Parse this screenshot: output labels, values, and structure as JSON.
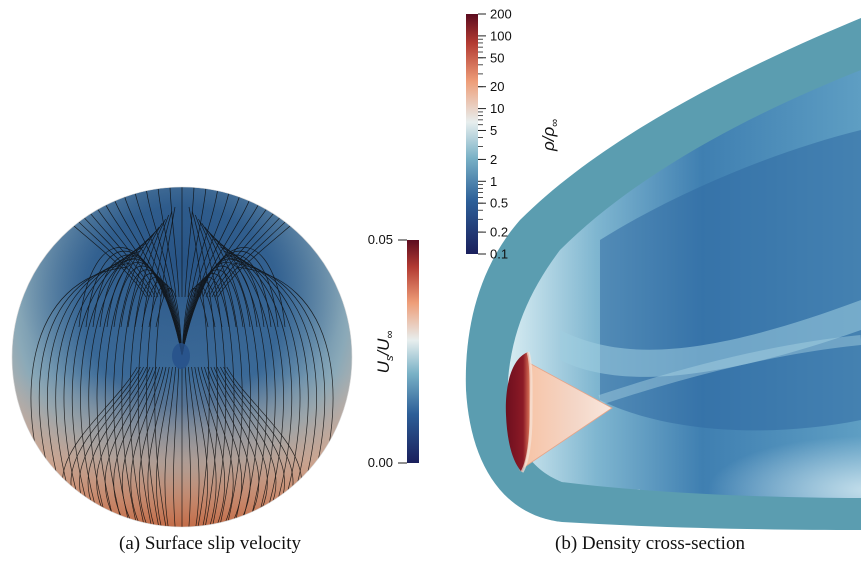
{
  "figure": {
    "panel_a": {
      "caption": "(a) Surface slip velocity",
      "colorbar": {
        "title_main": "U",
        "title_sub": "s",
        "title_sep": "/",
        "title_main2": "U",
        "title_sub2": "∞",
        "ticks": [
          "0.05",
          "0.00"
        ],
        "colors": [
          "#1a1f5c",
          "#3a6fa0",
          "#d9ecef",
          "#f2a27a",
          "#6b0f1f"
        ]
      }
    },
    "panel_b": {
      "caption": "(b) Density cross-section",
      "colorbar": {
        "title_main": "ρ",
        "title_sep": "/",
        "title_main2": "ρ",
        "title_sub2": "∞",
        "ticks": [
          "200",
          "100",
          "50",
          "20",
          "10",
          "5",
          "2",
          "1",
          "0.5",
          "0.2",
          "0.1"
        ],
        "colors": [
          "#1a1f5c",
          "#3a6fa0",
          "#d9ecef",
          "#f2a27a",
          "#6b0f1f"
        ]
      }
    },
    "colors": {
      "shock_layer": "#5b9db0",
      "deep_blue": "#1f4f86",
      "light_blue": "#bfe0ec",
      "warm": "#f4b89a",
      "dark_red": "#6b0f1f"
    }
  }
}
